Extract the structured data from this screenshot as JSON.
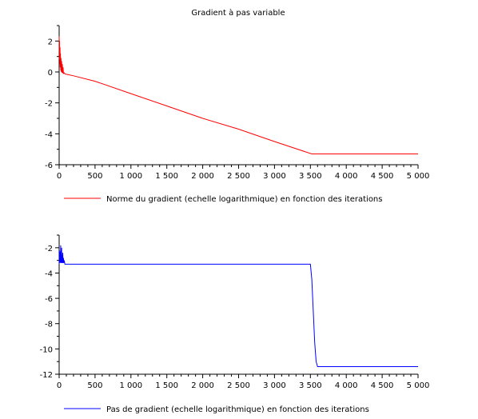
{
  "figure_title": "Gradient à pas variable",
  "chart_data": [
    {
      "type": "line",
      "title": "Gradient à pas variable",
      "xlabel": "",
      "ylabel": "",
      "xlim": [
        0,
        5000
      ],
      "ylim": [
        -6,
        3
      ],
      "x_ticks": [
        0,
        500,
        1000,
        1500,
        2000,
        2500,
        3000,
        3500,
        4000,
        4500,
        5000
      ],
      "x_tick_labels": [
        "0",
        "500",
        "1 000",
        "1 500",
        "2 000",
        "2 500",
        "3 000",
        "3 500",
        "4 000",
        "4 500",
        "5 000"
      ],
      "y_ticks": [
        2,
        0,
        -2,
        -4,
        -6
      ],
      "y_tick_labels": [
        "2",
        "0",
        "-2",
        "-4",
        "-6"
      ],
      "grid": false,
      "legend_position": "bottom-left, below axes",
      "series": [
        {
          "name": "Norme du gradient (echelle logarithmique) en fonction des iterations",
          "color": "#ff0000",
          "x": [
            0,
            3,
            6,
            9,
            12,
            15,
            18,
            22,
            26,
            30,
            35,
            40,
            45,
            50,
            55,
            60,
            70,
            80,
            100,
            200,
            500,
            1000,
            1500,
            2000,
            2500,
            3000,
            3520,
            3600,
            4000,
            4500,
            5000
          ],
          "y": [
            2.3,
            0.8,
            2.0,
            0.5,
            1.6,
            0.3,
            1.2,
            0.1,
            0.9,
            0.0,
            0.7,
            -0.05,
            0.5,
            -0.08,
            0.3,
            -0.1,
            -0.05,
            -0.12,
            -0.15,
            -0.25,
            -0.6,
            -1.4,
            -2.2,
            -3.0,
            -3.7,
            -4.5,
            -5.3,
            -5.3,
            -5.3,
            -5.3,
            -5.3
          ]
        }
      ]
    },
    {
      "type": "line",
      "title": "",
      "xlabel": "",
      "ylabel": "",
      "xlim": [
        0,
        5000
      ],
      "ylim": [
        -12,
        -1
      ],
      "x_ticks": [
        0,
        500,
        1000,
        1500,
        2000,
        2500,
        3000,
        3500,
        4000,
        4500,
        5000
      ],
      "x_tick_labels": [
        "0",
        "500",
        "1 000",
        "1 500",
        "2 000",
        "2 500",
        "3 000",
        "3 500",
        "4 000",
        "4 500",
        "5 000"
      ],
      "y_ticks": [
        -2,
        -4,
        -6,
        -8,
        -10,
        -12
      ],
      "y_tick_labels": [
        "-2",
        "-4",
        "-6",
        "-8",
        "-10",
        "-12"
      ],
      "grid": false,
      "legend_position": "bottom-left, below axes",
      "series": [
        {
          "name": "Pas de gradient (echelle logarithmique) en fonction des iterations",
          "color": "#0000ff",
          "x": [
            0,
            3,
            6,
            9,
            12,
            15,
            18,
            21,
            24,
            27,
            30,
            34,
            38,
            42,
            46,
            50,
            55,
            60,
            65,
            70,
            80,
            100,
            500,
            1000,
            2000,
            3000,
            3500,
            3520,
            3540,
            3560,
            3580,
            3600,
            4000,
            4500,
            5000
          ],
          "y": [
            -3.3,
            -2.2,
            -3.2,
            -2.6,
            -3.1,
            -2.3,
            -3.2,
            -1.8,
            -3.2,
            -2.5,
            -3.2,
            -2.0,
            -3.2,
            -2.6,
            -3.2,
            -2.4,
            -3.2,
            -2.8,
            -3.2,
            -3.0,
            -3.3,
            -3.3,
            -3.3,
            -3.3,
            -3.3,
            -3.3,
            -3.3,
            -4.5,
            -7.0,
            -9.5,
            -11.0,
            -11.4,
            -11.4,
            -11.4,
            -11.4
          ]
        }
      ]
    }
  ]
}
